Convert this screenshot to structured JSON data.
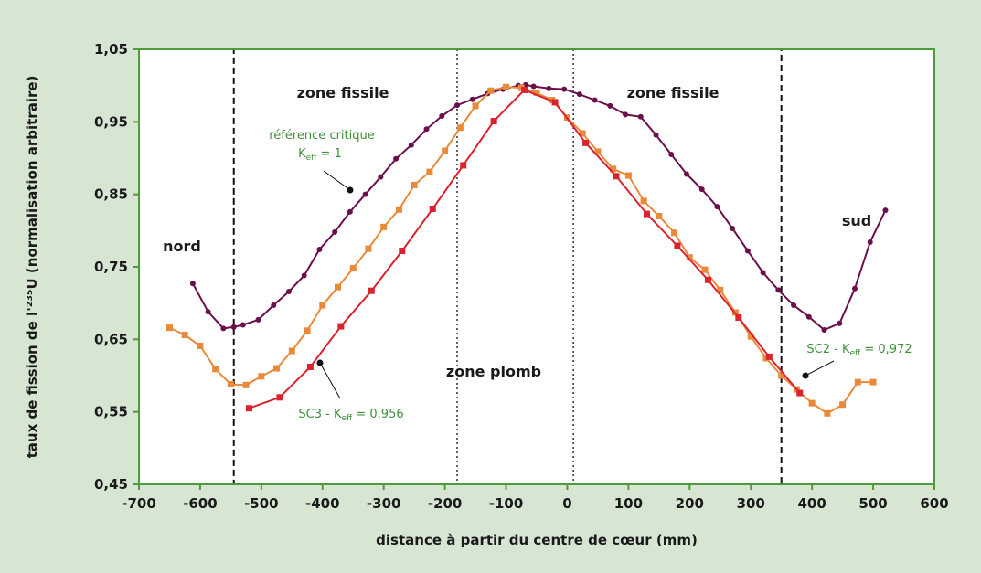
{
  "colors": {
    "background": "#d7e6d3",
    "plot_bg": "#ffffff",
    "axes": "#4f9a3a",
    "annotation_text": "#3f8f3a",
    "reference": "#6b0f4a",
    "sc2": "#e88a3a",
    "sc3": "#d9232e",
    "zone_lines": "#111111"
  },
  "chart_data": {
    "type": "line",
    "xlabel": "distance à partir du centre de cœur (mm)",
    "ylabel": "taux de fission de l'²³⁵U (normalisation arbitraire)",
    "xlim": [
      -700,
      600
    ],
    "ylim": [
      0.45,
      1.05
    ],
    "xticks": [
      -700,
      -600,
      -500,
      -400,
      -300,
      -200,
      -100,
      0,
      100,
      200,
      300,
      400,
      500,
      600
    ],
    "xtick_labels": [
      "-700",
      "-600",
      "-500",
      "-400",
      "-300",
      "-200",
      "-100",
      "0",
      "100",
      "200",
      "300",
      "400",
      "500",
      "600"
    ],
    "yticks": [
      0.45,
      0.55,
      0.65,
      0.75,
      0.85,
      0.95,
      1.05
    ],
    "ytick_labels": [
      "0,45",
      "0,55",
      "0,65",
      "0,75",
      "0,85",
      "0,95",
      "1,05"
    ],
    "grid": false,
    "series": [
      {
        "key": "reference",
        "color_key": "reference",
        "marker": "circle",
        "x": [
          -612,
          -587,
          -562,
          -545,
          -530,
          -505,
          -480,
          -455,
          -430,
          -405,
          -380,
          -355,
          -330,
          -305,
          -280,
          -255,
          -230,
          -205,
          -180,
          -155,
          -130,
          -105,
          -80,
          -68,
          -55,
          -30,
          -5,
          20,
          45,
          70,
          95,
          120,
          145,
          170,
          195,
          220,
          245,
          270,
          295,
          320,
          345,
          370,
          395,
          420,
          445,
          470,
          495,
          520
        ],
        "y": [
          0.727,
          0.688,
          0.665,
          0.667,
          0.67,
          0.677,
          0.697,
          0.716,
          0.738,
          0.774,
          0.798,
          0.826,
          0.85,
          0.874,
          0.899,
          0.918,
          0.94,
          0.958,
          0.973,
          0.981,
          0.989,
          0.995,
          1.0,
          1.001,
          0.999,
          0.996,
          0.995,
          0.988,
          0.98,
          0.972,
          0.96,
          0.957,
          0.932,
          0.905,
          0.878,
          0.857,
          0.833,
          0.803,
          0.772,
          0.742,
          0.718,
          0.697,
          0.681,
          0.663,
          0.672,
          0.72,
          0.784,
          0.828
        ]
      },
      {
        "key": "sc2",
        "color_key": "sc2",
        "marker": "square",
        "x": [
          -650,
          -625,
          -600,
          -575,
          -550,
          -525,
          -500,
          -475,
          -450,
          -425,
          -400,
          -375,
          -350,
          -325,
          -300,
          -275,
          -250,
          -225,
          -200,
          -175,
          -150,
          -125,
          -100,
          -75,
          -50,
          -25,
          0,
          25,
          50,
          75,
          100,
          125,
          150,
          175,
          200,
          225,
          250,
          275,
          300,
          325,
          350,
          375,
          400,
          425,
          450,
          475,
          500
        ],
        "y": [
          0.666,
          0.656,
          0.641,
          0.609,
          0.588,
          0.587,
          0.599,
          0.61,
          0.634,
          0.662,
          0.697,
          0.722,
          0.748,
          0.775,
          0.805,
          0.829,
          0.863,
          0.881,
          0.91,
          0.942,
          0.972,
          0.993,
          0.998,
          0.997,
          0.99,
          0.98,
          0.956,
          0.934,
          0.909,
          0.885,
          0.876,
          0.841,
          0.82,
          0.797,
          0.763,
          0.746,
          0.718,
          0.687,
          0.654,
          0.624,
          0.6,
          0.581,
          0.562,
          0.548,
          0.56,
          0.591,
          0.591
        ]
      },
      {
        "key": "sc3",
        "color_key": "sc3",
        "marker": "square",
        "x": [
          -520,
          -470,
          -420,
          -370,
          -320,
          -270,
          -220,
          -170,
          -120,
          -70,
          -20,
          30,
          80,
          130,
          180,
          230,
          280,
          330,
          380
        ],
        "y": [
          0.555,
          0.57,
          0.612,
          0.668,
          0.717,
          0.772,
          0.83,
          0.89,
          0.951,
          0.994,
          0.977,
          0.921,
          0.875,
          0.823,
          0.779,
          0.732,
          0.68,
          0.626,
          0.576
        ]
      }
    ],
    "regions": {
      "dashed_box": [
        -545,
        350
      ],
      "dotted_lines": [
        -180,
        10
      ]
    },
    "annotations": {
      "zone_fissile_left": "zone fissile",
      "zone_fissile_right": "zone fissile",
      "zone_plomb": "zone plomb",
      "nord": "nord",
      "sud": "sud",
      "reference_line1": "référence critique",
      "reference_k": "K",
      "reference_sub": "eff",
      "reference_value": " = 1",
      "sc2_prefix": "SC2 - K",
      "sc2_sub": "eff",
      "sc2_value": " = 0,972",
      "sc3_prefix": "SC3 - K",
      "sc3_sub": "eff",
      "sc3_value": " = 0,956"
    }
  }
}
